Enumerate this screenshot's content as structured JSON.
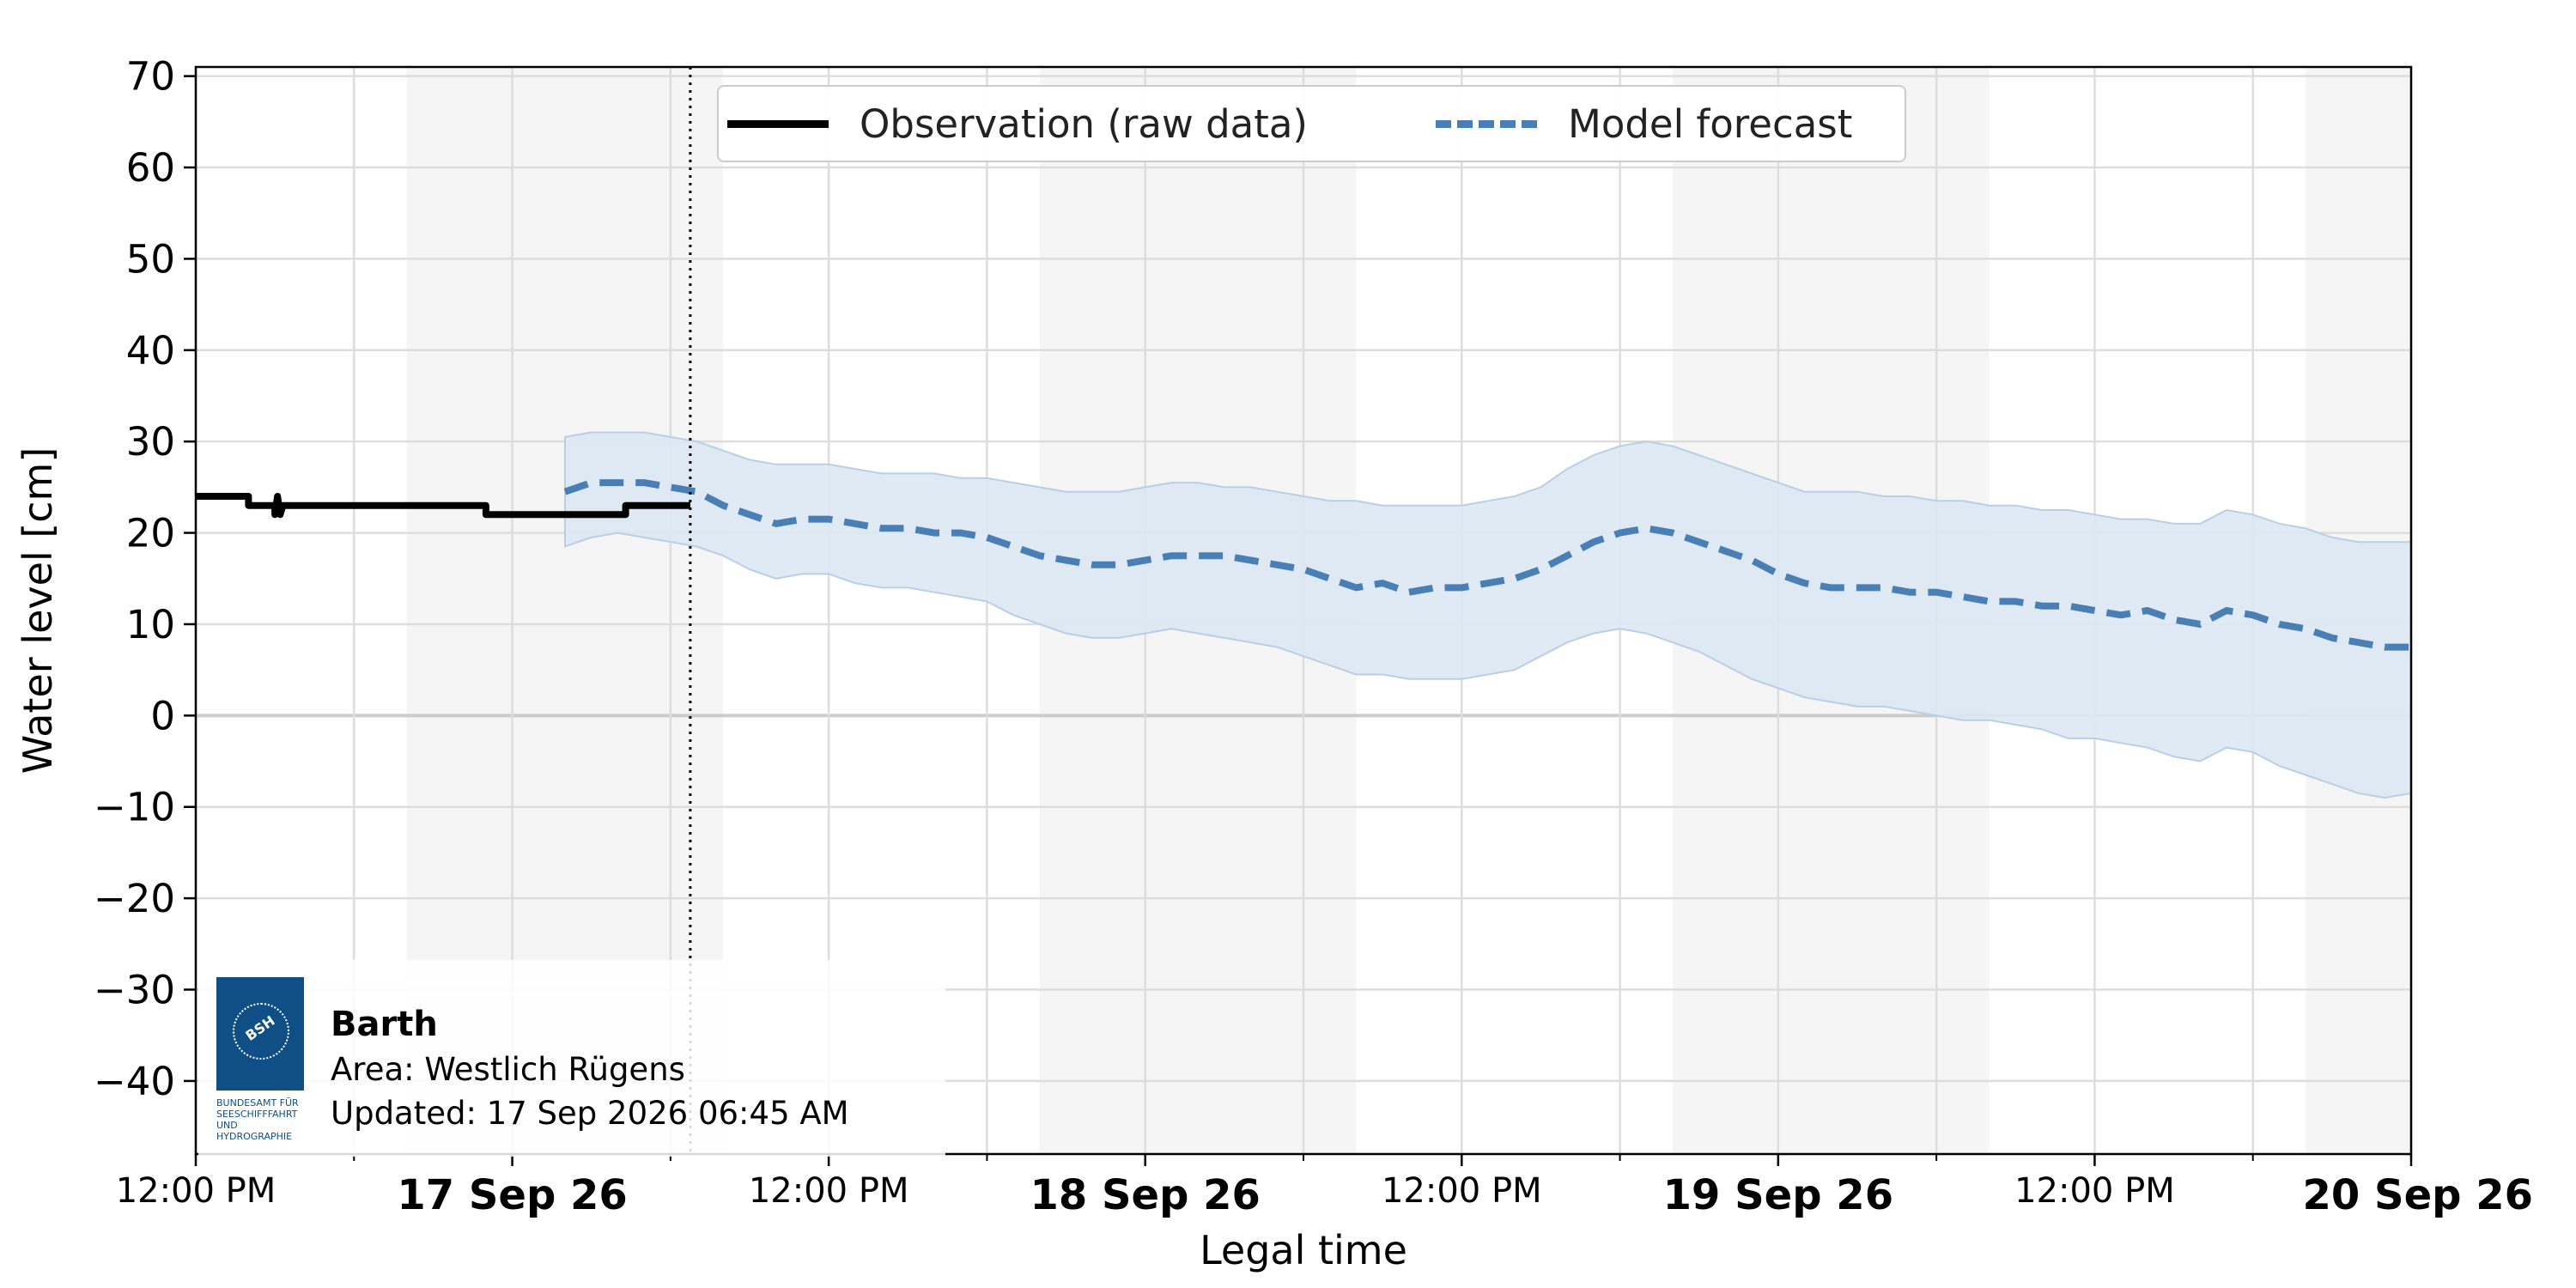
{
  "chart_data": {
    "type": "line",
    "xlabel": "Legal time",
    "ylabel": "Water level [cm]",
    "ylim": [
      -48,
      71
    ],
    "yticks": [
      70,
      60,
      50,
      40,
      30,
      20,
      10,
      0,
      -10,
      -20,
      -30,
      -40
    ],
    "xlim_hours": [
      0,
      84
    ],
    "xticks": [
      {
        "hour": 0,
        "label": "12:00 PM",
        "bold": false
      },
      {
        "hour": 12,
        "label": "17 Sep 26",
        "bold": true
      },
      {
        "hour": 24,
        "label": "12:00 PM",
        "bold": false
      },
      {
        "hour": 36,
        "label": "18 Sep 26",
        "bold": true
      },
      {
        "hour": 48,
        "label": "12:00 PM",
        "bold": false
      },
      {
        "hour": 60,
        "label": "19 Sep 26",
        "bold": true
      },
      {
        "hour": 72,
        "label": "12:00 PM",
        "bold": false
      },
      {
        "hour": 84,
        "label": "20 Sep 26",
        "bold": true
      }
    ],
    "minor_tick_hours": [
      6,
      18,
      30,
      42,
      54,
      66,
      78
    ],
    "night_shading_hours": [
      [
        8,
        20
      ],
      [
        32,
        44
      ],
      [
        56,
        68
      ],
      [
        80,
        84
      ]
    ],
    "now_marker_hour": 18.75,
    "legend_placement": "top-center",
    "grid": true,
    "series": [
      {
        "name": "Observation (raw data)",
        "style": "solid",
        "color": "#000000",
        "x": [
          0,
          2,
          2,
          3,
          3,
          3.1,
          3.2,
          3.3,
          4,
          11,
          11,
          16.3,
          16.3,
          18.75
        ],
        "y": [
          24,
          24,
          23,
          23,
          22,
          24,
          22,
          23,
          23,
          23,
          22,
          22,
          23,
          23
        ]
      },
      {
        "name": "Model forecast",
        "style": "dashed",
        "color": "#4a7fb5",
        "band_color": "#dce8f3",
        "x": [
          14,
          15,
          16,
          17,
          18,
          19,
          20,
          21,
          22,
          23,
          24,
          25,
          26,
          27,
          28,
          29,
          30,
          31,
          32,
          33,
          34,
          35,
          36,
          37,
          38,
          39,
          40,
          41,
          42,
          43,
          44,
          45,
          46,
          47,
          48,
          49,
          50,
          51,
          52,
          53,
          54,
          55,
          56,
          57,
          58,
          59,
          60,
          61,
          62,
          63,
          64,
          65,
          66,
          67,
          68,
          69,
          70,
          71,
          72,
          73,
          74,
          75,
          76,
          77,
          78,
          79,
          80,
          81,
          82,
          83,
          84
        ],
        "y": [
          24.5,
          25.5,
          25.5,
          25.5,
          25.0,
          24.5,
          23.0,
          22.0,
          21.0,
          21.5,
          21.5,
          21.0,
          20.5,
          20.5,
          20.0,
          20.0,
          19.5,
          18.5,
          17.5,
          17.0,
          16.5,
          16.5,
          17.0,
          17.5,
          17.5,
          17.5,
          17.0,
          16.5,
          16.0,
          15.0,
          14.0,
          14.5,
          13.5,
          14.0,
          14.0,
          14.5,
          15.0,
          16.0,
          17.5,
          19.0,
          20.0,
          20.5,
          20.0,
          19.0,
          18.0,
          17.0,
          15.5,
          14.5,
          14.0,
          14.0,
          14.0,
          13.5,
          13.5,
          13.0,
          12.5,
          12.5,
          12.0,
          12.0,
          11.5,
          11.0,
          11.5,
          10.5,
          10.0,
          11.5,
          11.0,
          10.0,
          9.5,
          8.5,
          8.0,
          7.5,
          7.5
        ],
        "upper": [
          30.5,
          31.0,
          31.0,
          31.0,
          30.5,
          30.0,
          29.0,
          28.0,
          27.5,
          27.5,
          27.5,
          27.0,
          26.5,
          26.5,
          26.5,
          26.0,
          26.0,
          25.5,
          25.0,
          24.5,
          24.5,
          24.5,
          25.0,
          25.5,
          25.5,
          25.0,
          25.0,
          24.5,
          24.0,
          23.5,
          23.5,
          23.0,
          23.0,
          23.0,
          23.0,
          23.5,
          24.0,
          25.0,
          27.0,
          28.5,
          29.5,
          30.0,
          29.5,
          28.5,
          27.5,
          26.5,
          25.5,
          24.5,
          24.5,
          24.5,
          24.0,
          24.0,
          23.5,
          23.5,
          23.0,
          23.0,
          22.5,
          22.5,
          22.0,
          21.5,
          21.5,
          21.0,
          21.0,
          22.5,
          22.0,
          21.0,
          20.5,
          19.5,
          19.0,
          19.0,
          19.0
        ],
        "lower": [
          18.5,
          19.5,
          20.0,
          19.5,
          19.0,
          18.5,
          17.5,
          16.0,
          15.0,
          15.5,
          15.5,
          14.5,
          14.0,
          14.0,
          13.5,
          13.0,
          12.5,
          11.0,
          10.0,
          9.0,
          8.5,
          8.5,
          9.0,
          9.5,
          9.0,
          8.5,
          8.0,
          7.5,
          6.5,
          5.5,
          4.5,
          4.5,
          4.0,
          4.0,
          4.0,
          4.5,
          5.0,
          6.5,
          8.0,
          9.0,
          9.5,
          9.0,
          8.0,
          7.0,
          5.5,
          4.0,
          3.0,
          2.0,
          1.5,
          1.0,
          1.0,
          0.5,
          0.0,
          -0.5,
          -0.5,
          -1.0,
          -1.5,
          -2.5,
          -2.5,
          -3.0,
          -3.5,
          -4.5,
          -5.0,
          -3.5,
          -4.0,
          -5.5,
          -6.5,
          -7.5,
          -8.5,
          -9.0,
          -8.5
        ]
      }
    ]
  },
  "legend": {
    "observation_label": "Observation (raw data)",
    "forecast_label": "Model forecast"
  },
  "station": {
    "name": "Barth",
    "area": "Area: Westlich Rügens",
    "updated": "Updated: 17 Sep 2026 06:45 AM"
  },
  "logo": {
    "abbr": "BSH",
    "lines": [
      "BUNDESAMT FÜR",
      "SEESCHIFFFAHRT",
      "UND",
      "HYDROGRAPHIE"
    ],
    "color": "#0f4f86"
  }
}
